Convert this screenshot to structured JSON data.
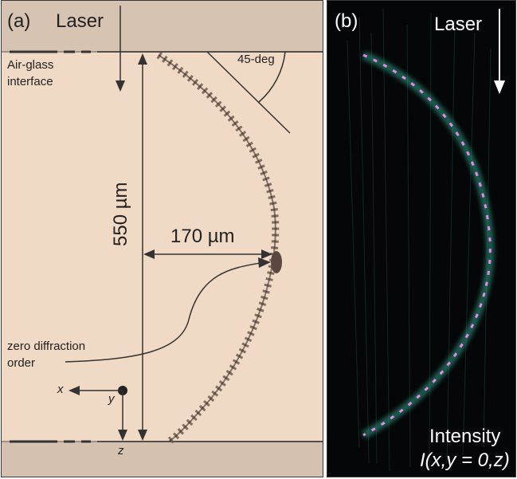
{
  "panel_a": {
    "label": "(a)",
    "laser": "Laser",
    "interface_line1": "Air-glass",
    "interface_line2": "interface",
    "angle": "45-deg",
    "height": "550 µm",
    "width": "170 µm",
    "zero_line1": "zero diffraction",
    "zero_line2": "order",
    "axis_x": "x",
    "axis_y": "y",
    "axis_z": "z"
  },
  "panel_b": {
    "label": "(b)",
    "laser": "Laser",
    "intensity_line1": "Intensity",
    "intensity_line2": "I(x,y = 0,z)"
  },
  "colors": {
    "background_a": "#f0d9c5",
    "band": "#d7c3b1",
    "background_b": "#050607",
    "beam_glow": "#39b39a",
    "beam_core": "#e08ce6"
  }
}
